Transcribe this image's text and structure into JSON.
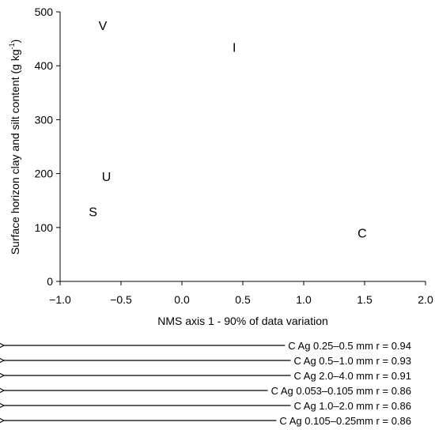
{
  "chart_data": {
    "type": "scatter",
    "xlabel": "NMS axis 1 - 90% of data variation",
    "ylabel_text": "Surface horizon clay and silt content (g kg",
    "ylabel_sup": "-1",
    "ylabel_close": ")",
    "xlim": [
      -1.0,
      2.0
    ],
    "ylim": [
      0,
      500
    ],
    "x_ticks": [
      -1.0,
      -0.5,
      0.0,
      0.5,
      1.0,
      1.5,
      2.0
    ],
    "x_tick_labels": [
      "−1.0",
      "−0.5",
      "0.0",
      "0.5",
      "1.0",
      "1.5",
      "2.0"
    ],
    "y_ticks": [
      0,
      100,
      200,
      300,
      400,
      500
    ],
    "y_tick_labels": [
      "0",
      "100",
      "200",
      "300",
      "400",
      "500"
    ],
    "points": [
      {
        "label": "V",
        "x": -0.65,
        "y": 475
      },
      {
        "label": "I",
        "x": 0.43,
        "y": 435
      },
      {
        "label": "U",
        "x": -0.62,
        "y": 195
      },
      {
        "label": "S",
        "x": -0.73,
        "y": 130
      },
      {
        "label": "C",
        "x": 1.48,
        "y": 90
      }
    ],
    "vectors": [
      {
        "label": "C Ag 0.25–0.5 mm r = 0.94",
        "r": 0.94
      },
      {
        "label": "C Ag 0.5–1.0 mm r = 0.93",
        "r": 0.93
      },
      {
        "label": "C Ag 2.0–4.0 mm r = 0.91",
        "r": 0.91
      },
      {
        "label": "C Ag 0.053–0.105 mm r = 0.86",
        "r": 0.86
      },
      {
        "label": "C Ag 1.0–2.0 mm r = 0.86",
        "r": 0.86
      },
      {
        "label": "C Ag 0.105–0.25mm r = 0.86",
        "r": 0.86
      }
    ]
  }
}
